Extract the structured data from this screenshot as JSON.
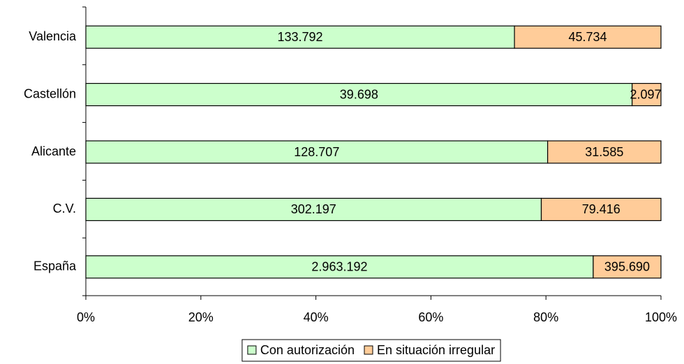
{
  "chart_data": {
    "type": "bar",
    "orientation": "horizontal",
    "stacking": "percent",
    "categories": [
      "Valencia",
      "Castellón",
      "Alicante",
      "C.V.",
      "España"
    ],
    "series": [
      {
        "name": "Con autorización",
        "color": "#ccffcc",
        "values": [
          133792,
          39698,
          128707,
          302197,
          2963192
        ],
        "value_labels": [
          "133.792",
          "39.698",
          "128.707",
          "302.197",
          "2.963.192"
        ]
      },
      {
        "name": "En situación irregular",
        "color": "#ffcc99",
        "values": [
          45734,
          2097,
          31585,
          79416,
          395690
        ],
        "value_labels": [
          "45.734",
          "2.097",
          "31.585",
          "79.416",
          "395.690"
        ]
      }
    ],
    "xlim": [
      0,
      100
    ],
    "xticks": [
      {
        "value": 0,
        "label": "0%"
      },
      {
        "value": 20,
        "label": "20%"
      },
      {
        "value": 40,
        "label": "40%"
      },
      {
        "value": 60,
        "label": "60%"
      },
      {
        "value": 80,
        "label": "80%"
      },
      {
        "value": 100,
        "label": "100%"
      }
    ],
    "legend": "bottom"
  }
}
